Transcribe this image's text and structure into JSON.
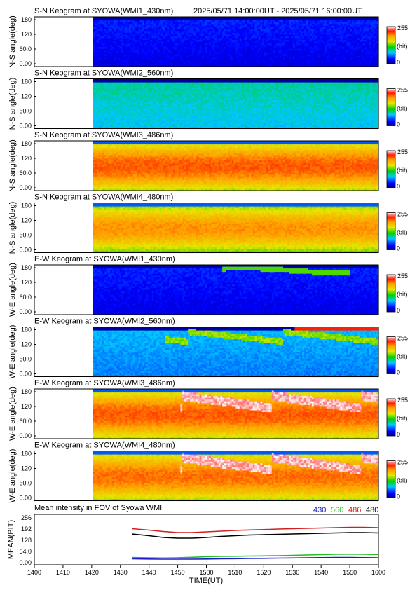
{
  "header": {
    "time_range": "2025/05/71 14:00:00UT - 2025/05/71 16:00:00UT"
  },
  "colorbar": {
    "max": "255",
    "unit": "(bit)",
    "min": "0"
  },
  "x_axis": {
    "label": "TIME(UT)",
    "ticks": [
      "1400",
      "1410",
      "1420",
      "1430",
      "1440",
      "1450",
      "1500",
      "1510",
      "1520",
      "1530",
      "1540",
      "1550",
      "1600"
    ]
  },
  "panels": [
    {
      "title": "S-N Keogram at SYOWA(WMI1_430nm)",
      "ylabel": "N-S angle(deg)",
      "yticks": [
        "180",
        "120",
        "60.0",
        "0.00"
      ],
      "base": "0.12",
      "band": "none"
    },
    {
      "title": "S-N Keogram at SYOWA(WMI2_560nm)",
      "ylabel": "N-S angle(deg)",
      "yticks": [
        "180",
        "120",
        "60.0",
        "0.00"
      ],
      "base": "0.33",
      "band": "none"
    },
    {
      "title": "S-N Keogram at SYOWA(WMI3_486nm)",
      "ylabel": "N-S angle(deg)",
      "yticks": [
        "180",
        "120",
        "60.0",
        "0.00"
      ],
      "base": "0.82",
      "band": "none"
    },
    {
      "title": "S-N Keogram at SYOWA(WMI4_480nm)",
      "ylabel": "N-S angle(deg)",
      "yticks": [
        "180",
        "120",
        "60.0",
        "0.00"
      ],
      "base": "0.76",
      "band": "none"
    },
    {
      "title": "E-W Keogram at SYOWA(WMI1_430nm)",
      "ylabel": "W-E angle(deg)",
      "yticks": [
        "180",
        "120",
        "60.0",
        "0.00"
      ],
      "base": "0.12",
      "band": "faint"
    },
    {
      "title": "E-W Keogram at SYOWA(WMI2_560nm)",
      "ylabel": "W-E angle(deg)",
      "yticks": [
        "180",
        "120",
        "60.0",
        "0.00"
      ],
      "base": "0.26",
      "band": "green"
    },
    {
      "title": "E-W Keogram at SYOWA(WMI3_486nm)",
      "ylabel": "W-E angle(deg)",
      "yticks": [
        "180",
        "120",
        "60.0",
        "0.00"
      ],
      "base": "0.82",
      "band": "white"
    },
    {
      "title": "E-W Keogram at SYOWA(WMI4_480nm)",
      "ylabel": "W-E angle(deg)",
      "yticks": [
        "180",
        "120",
        "60.0",
        "0.00"
      ],
      "base": "0.80",
      "band": "white"
    }
  ],
  "chart_data": {
    "type": "line",
    "title": "Mean intensity in FOV of Syowa WMI",
    "xlabel": "TIME(UT)",
    "ylabel": "MEAN(BIT)",
    "yticks": [
      "256",
      "192",
      "128",
      "64.0",
      "0.00"
    ],
    "ylim": [
      0,
      256
    ],
    "xlim": [
      1400,
      1600
    ],
    "x": [
      1434,
      1440,
      1445,
      1450,
      1455,
      1500,
      1505,
      1510,
      1515,
      1520,
      1525,
      1530,
      1535,
      1540,
      1545,
      1550,
      1555,
      1600
    ],
    "series": [
      {
        "name": "430",
        "color": "#1c1cc8",
        "values": [
          18,
          17,
          16,
          16,
          16,
          17,
          18,
          19,
          20,
          21,
          22,
          23,
          24,
          25,
          26,
          26,
          25,
          24
        ]
      },
      {
        "name": "560",
        "color": "#1fbf1f",
        "values": [
          26,
          24,
          23,
          24,
          27,
          30,
          32,
          33,
          34,
          35,
          36,
          38,
          40,
          42,
          44,
          45,
          44,
          43
        ]
      },
      {
        "name": "486",
        "color": "#d21e1e",
        "values": [
          190,
          182,
          174,
          168,
          168,
          172,
          176,
          180,
          183,
          185,
          188,
          190,
          192,
          194,
          196,
          198,
          198,
          196
        ]
      },
      {
        "name": "480",
        "color": "#000000",
        "values": [
          160,
          150,
          140,
          136,
          136,
          140,
          146,
          150,
          154,
          156,
          158,
          160,
          162,
          164,
          166,
          168,
          168,
          166
        ]
      }
    ],
    "legend_position": "top-right"
  }
}
